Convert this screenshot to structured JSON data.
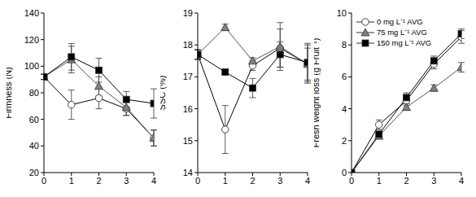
{
  "chart_data": [
    {
      "type": "line",
      "y_label": "Firmness (N)",
      "x": [
        0,
        1,
        2,
        3,
        4
      ],
      "xlim": [
        0,
        4
      ],
      "xticks": [
        0,
        1,
        2,
        3,
        4
      ],
      "ylim": [
        20,
        140
      ],
      "yticks": [
        20,
        40,
        60,
        80,
        100,
        120,
        140
      ],
      "series": [
        {
          "name": "0 mg L⁻¹ AVG",
          "color": "#000000",
          "marker": "circle_open",
          "values": [
            92,
            71,
            76,
            68,
            46
          ],
          "errors": [
            2,
            11,
            8,
            5,
            6
          ]
        },
        {
          "name": "75 mg L⁻¹ AVG",
          "color": "#808080",
          "marker": "triangle",
          "values": [
            92,
            105,
            85,
            69,
            46
          ],
          "errors": [
            2,
            10,
            7,
            6,
            6
          ]
        },
        {
          "name": "150 mg L⁻¹ AVG",
          "color": "#000000",
          "marker": "square",
          "values": [
            92,
            107,
            97,
            75,
            72
          ],
          "errors": [
            2,
            10,
            9,
            6,
            11
          ]
        }
      ]
    },
    {
      "type": "line",
      "y_label": "SSC (%)",
      "x": [
        0,
        1,
        2,
        3,
        4
      ],
      "xlim": [
        0,
        4
      ],
      "xticks": [
        0,
        1,
        2,
        3,
        4
      ],
      "ylim": [
        14,
        19
      ],
      "yticks": [
        14,
        15,
        16,
        17,
        18,
        19
      ],
      "series": [
        {
          "name": "0 mg L⁻¹ AVG",
          "color": "#000000",
          "marker": "circle_open",
          "values": [
            17.7,
            15.35,
            17.35,
            17.9,
            17.4
          ],
          "errors": [
            0.15,
            0.75,
            0.15,
            0.6,
            0.5
          ]
        },
        {
          "name": "75 mg L⁻¹ AVG",
          "color": "#808080",
          "marker": "triangle",
          "values": [
            17.7,
            18.55,
            17.5,
            17.95,
            17.4
          ],
          "errors": [
            0.15,
            0.1,
            0.1,
            0.75,
            0.6
          ]
        },
        {
          "name": "150 mg L⁻¹ AVG",
          "color": "#000000",
          "marker": "square",
          "values": [
            17.7,
            17.15,
            16.65,
            17.7,
            17.45
          ],
          "errors": [
            0.15,
            0.05,
            0.3,
            0.4,
            0.6
          ]
        }
      ]
    },
    {
      "type": "line",
      "y_label": "Fresh weight loss (g Fruit⁻¹)",
      "x": [
        0,
        1,
        2,
        3,
        4
      ],
      "xlim": [
        0,
        4
      ],
      "xticks": [
        0,
        1,
        2,
        3,
        4
      ],
      "ylim": [
        0,
        10
      ],
      "yticks": [
        0,
        2,
        4,
        6,
        8,
        10
      ],
      "legend": "upper left",
      "series": [
        {
          "name": "0 mg L⁻¹ AVG",
          "color": "#000000",
          "marker": "circle_open",
          "values": [
            0,
            3.0,
            4.5,
            6.8,
            8.5
          ],
          "errors": [
            0,
            0.3,
            0.3,
            0.3,
            0.4
          ]
        },
        {
          "name": "75 mg L⁻¹ AVG",
          "color": "#808080",
          "marker": "triangle",
          "values": [
            0,
            2.3,
            4.1,
            5.3,
            6.6
          ],
          "errors": [
            0,
            0.2,
            0.2,
            0.2,
            0.3
          ]
        },
        {
          "name": "150 mg L⁻¹ AVG",
          "color": "#000000",
          "marker": "square",
          "values": [
            0,
            2.4,
            4.7,
            7.0,
            8.7
          ],
          "errors": [
            0,
            0.2,
            0.3,
            0.3,
            0.3
          ]
        }
      ]
    }
  ]
}
